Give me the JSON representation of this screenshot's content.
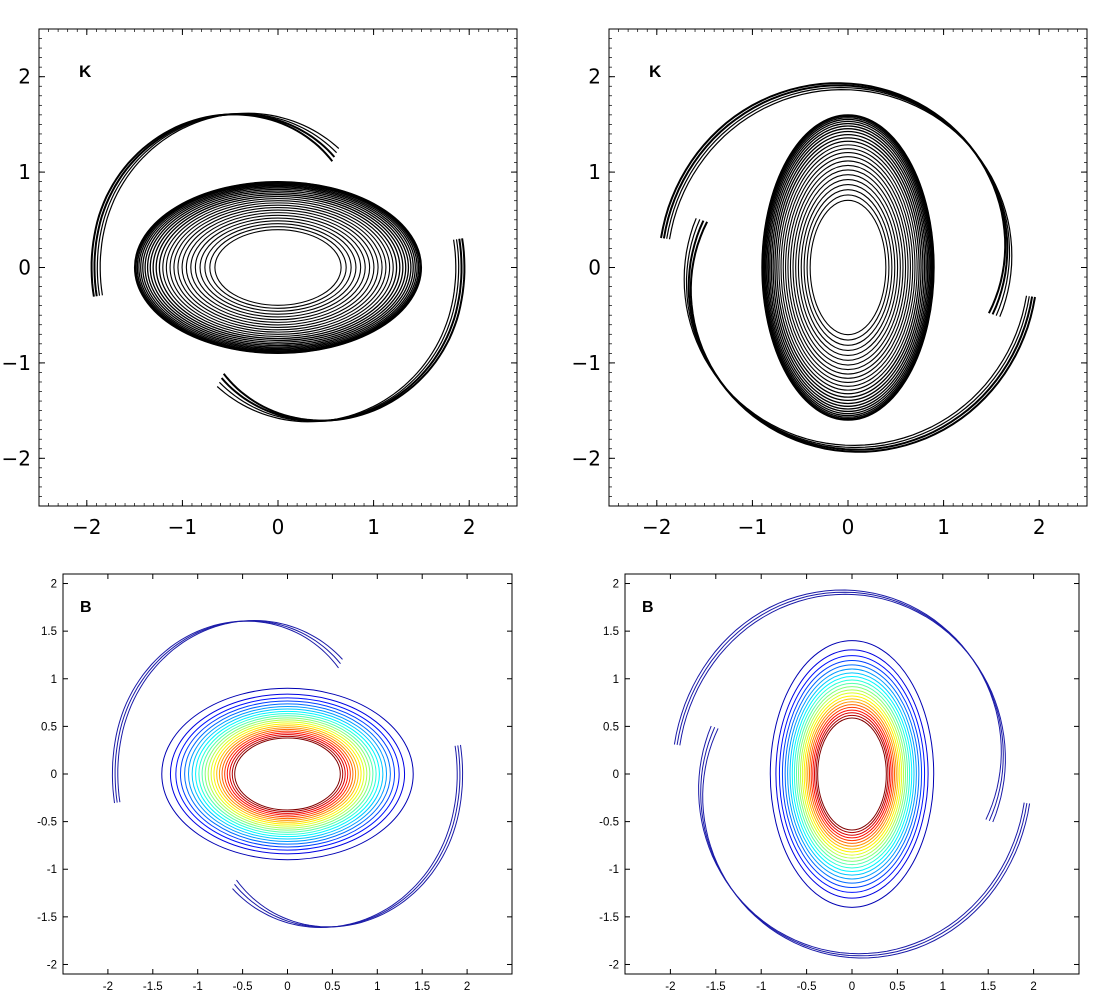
{
  "chart_data": [
    {
      "type": "contour",
      "panel_label": "K",
      "xlim": [
        -2.5,
        2.5
      ],
      "ylim": [
        -2.5,
        2.5
      ],
      "xticks": [
        "−2",
        "−1",
        "0",
        "1",
        "2"
      ],
      "yticks": [
        "−2",
        "−1",
        "0",
        "1",
        "2"
      ],
      "orientation": "horizontal",
      "core": {
        "semi_x": 1.5,
        "semi_y": 0.9
      },
      "arms": "two spiral filaments, radius about 1.9",
      "line_color": "#000000"
    },
    {
      "type": "contour",
      "panel_label": "K",
      "xlim": [
        -2.5,
        2.5
      ],
      "ylim": [
        -2.5,
        2.5
      ],
      "xticks": [
        "−2",
        "−1",
        "0",
        "1",
        "2"
      ],
      "yticks": [
        "−2",
        "−1",
        "0",
        "1",
        "2"
      ],
      "orientation": "vertical",
      "core": {
        "semi_x": 0.9,
        "semi_y": 1.6
      },
      "arms": "filaments wound into a ring, radius about 1.95",
      "line_color": "#000000"
    },
    {
      "type": "contour",
      "panel_label": "B",
      "xlim": [
        -2.5,
        2.5
      ],
      "ylim": [
        -2.1,
        2.1
      ],
      "xticks": [
        "-2",
        "-1.5",
        "-1",
        "-0.5",
        "0",
        "0.5",
        "1",
        "1.5",
        "2"
      ],
      "yticks": [
        "-2",
        "-1.5",
        "-1",
        "-0.5",
        "0",
        "0.5",
        "1",
        "1.5",
        "2"
      ],
      "orientation": "horizontal",
      "core": {
        "semi_x": 1.4,
        "semi_y": 0.9
      },
      "arms": "two spiral filaments",
      "colormap": "jet"
    },
    {
      "type": "contour",
      "panel_label": "B",
      "xlim": [
        -2.5,
        2.5
      ],
      "ylim": [
        -2.1,
        2.1
      ],
      "xticks": [
        "-2",
        "-1.5",
        "-1",
        "-0.5",
        "0",
        "0.5",
        "1",
        "1.5",
        "2"
      ],
      "yticks": [
        "-2",
        "-1.5",
        "-1",
        "-0.5",
        "0",
        "0.5",
        "1",
        "1.5",
        "2"
      ],
      "orientation": "vertical",
      "core": {
        "semi_x": 0.9,
        "semi_y": 1.4
      },
      "arms": "ring-like filaments",
      "colormap": "jet"
    }
  ]
}
